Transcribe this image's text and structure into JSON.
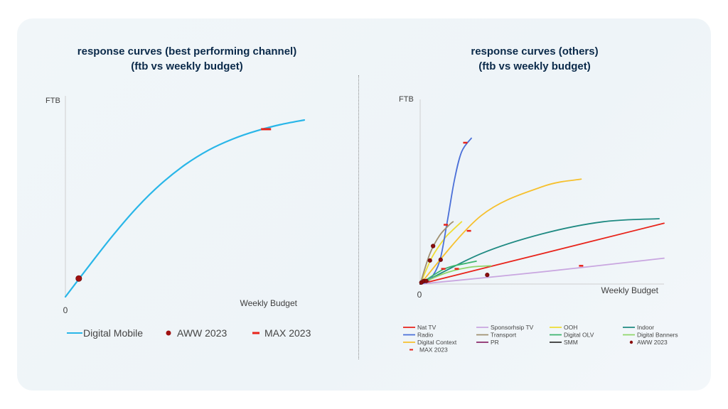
{
  "left_panel": {
    "title_line1": "response curves (best performing channel)",
    "title_line2": "(ftb vs weekly budget)"
  },
  "right_panel": {
    "title_line1": "response curves (others)",
    "title_line2": "(ftb vs weekly budget)"
  },
  "chart_data": [
    {
      "type": "line",
      "title": "response curves (best performing channel) (ftb vs weekly budget)",
      "ylabel": "FTB",
      "xlabel": "Weekly Budget",
      "x_tick_labels": [
        "0"
      ],
      "xlim": [
        0,
        100
      ],
      "ylim": [
        0,
        100
      ],
      "grid": false,
      "legend_position": "bottom",
      "series": [
        {
          "name": "Digital Mobile",
          "color": "#29b6e8",
          "x": [
            0,
            10,
            20,
            30,
            40,
            50,
            60,
            70,
            80,
            90,
            100
          ],
          "y": [
            0,
            17.1,
            33.7,
            48.8,
            61.6,
            72.0,
            80.1,
            86.1,
            90.6,
            94.0,
            96.5
          ]
        }
      ],
      "markers": {
        "aww_2023": {
          "label": "AWW 2023",
          "color": "#a01010",
          "points": [
            [
              5.6,
              10
            ]
          ]
        },
        "max_2023": {
          "label": "MAX 2023",
          "color": "#e8231a",
          "points": [
            [
              84,
              91.5
            ]
          ]
        }
      }
    },
    {
      "type": "line",
      "title": "response curves (others) (ftb vs weekly budget)",
      "ylabel": "FTB",
      "xlabel": "Weekly Budget",
      "x_tick_labels": [
        "0"
      ],
      "xlim": [
        0,
        100
      ],
      "ylim": [
        0,
        100
      ],
      "grid": false,
      "legend_position": "bottom",
      "series": [
        {
          "name": "Nat TV",
          "color": "#e8231a",
          "x": [
            0,
            50,
            100
          ],
          "y": [
            0,
            20,
            40
          ]
        },
        {
          "name": "Sponsorhsip TV",
          "color": "#c9a6e0",
          "x": [
            0,
            50,
            100
          ],
          "y": [
            0,
            8,
            17
          ]
        },
        {
          "name": "OOH",
          "color": "#eedd33",
          "x": [
            0,
            5,
            10,
            13,
            17
          ],
          "y": [
            0,
            18,
            30,
            35,
            41
          ]
        },
        {
          "name": "Indoor",
          "color": "#1f8a82",
          "x": [
            0,
            25,
            50,
            75,
            98
          ],
          "y": [
            0,
            20,
            33,
            41,
            43
          ]
        },
        {
          "name": "Radio",
          "color": "#4a6fd8",
          "x": [
            0,
            4,
            8,
            11,
            14,
            17,
            21
          ],
          "y": [
            0,
            3,
            15,
            40,
            68,
            87,
            96
          ]
        },
        {
          "name": "Transport",
          "color": "#a09070",
          "x": [
            0,
            4,
            8,
            12,
            13.5
          ],
          "y": [
            0,
            20,
            32,
            39,
            41
          ]
        },
        {
          "name": "Digital OLV",
          "color": "#3cb56e",
          "x": [
            0,
            10,
            20,
            23
          ],
          "y": [
            0,
            10,
            14,
            15
          ]
        },
        {
          "name": "Digital Banners",
          "color": "#8fd66a",
          "x": [
            0,
            10,
            20,
            29
          ],
          "y": [
            0,
            7,
            11,
            12
          ]
        },
        {
          "name": "Digital Context",
          "color": "#f6c02e",
          "x": [
            0,
            25,
            50,
            66
          ],
          "y": [
            0,
            45,
            64,
            69
          ]
        },
        {
          "name": "PR",
          "color": "#8b2a6b",
          "x": [
            0,
            3
          ],
          "y": [
            0,
            2
          ]
        },
        {
          "name": "SMM",
          "color": "#333333",
          "x": [
            0,
            3
          ],
          "y": [
            0,
            2
          ]
        }
      ],
      "markers": {
        "aww_2023": {
          "label": "AWW 2023",
          "color": "#8b0d0d",
          "points": [
            [
              0.5,
              1
            ],
            [
              1.5,
              2
            ],
            [
              2.5,
              2
            ],
            [
              4,
              15.5
            ],
            [
              5.3,
              25
            ],
            [
              8.4,
              16
            ],
            [
              27.5,
              6
            ]
          ]
        },
        "max_2023": {
          "label": "MAX 2023",
          "color": "#e8231a",
          "points": [
            [
              18.5,
              93
            ],
            [
              10.5,
              39
            ],
            [
              20,
              35
            ],
            [
              9.5,
              10
            ],
            [
              15,
              10
            ],
            [
              66,
              12
            ]
          ]
        }
      }
    }
  ],
  "legend_left": [
    {
      "label": "Digital Mobile",
      "kind": "line",
      "color": "#29b6e8"
    },
    {
      "label": "AWW 2023",
      "kind": "dot",
      "color": "#a01010"
    },
    {
      "label": "MAX 2023",
      "kind": "dash",
      "color": "#e8231a"
    }
  ],
  "legend_right": [
    {
      "label": "Nat TV",
      "kind": "line",
      "color": "#e8231a"
    },
    {
      "label": "Sponsorhsip TV",
      "kind": "line",
      "color": "#c9a6e0"
    },
    {
      "label": "OOH",
      "kind": "line",
      "color": "#eedd33"
    },
    {
      "label": "Indoor",
      "kind": "line",
      "color": "#1f8a82"
    },
    {
      "label": "Radio",
      "kind": "line",
      "color": "#4a6fd8"
    },
    {
      "label": "Transport",
      "kind": "line",
      "color": "#a09070"
    },
    {
      "label": "Digital OLV",
      "kind": "line",
      "color": "#3cb56e"
    },
    {
      "label": "Digital Banners",
      "kind": "line",
      "color": "#8fd66a"
    },
    {
      "label": "Digital Context",
      "kind": "line",
      "color": "#f6c02e"
    },
    {
      "label": "PR",
      "kind": "line",
      "color": "#8b2a6b"
    },
    {
      "label": "SMM",
      "kind": "line",
      "color": "#333333"
    },
    {
      "label": "AWW 2023",
      "kind": "dot",
      "color": "#8b0d0d"
    },
    {
      "label": "MAX 2023",
      "kind": "dash",
      "color": "#e8231a"
    }
  ]
}
